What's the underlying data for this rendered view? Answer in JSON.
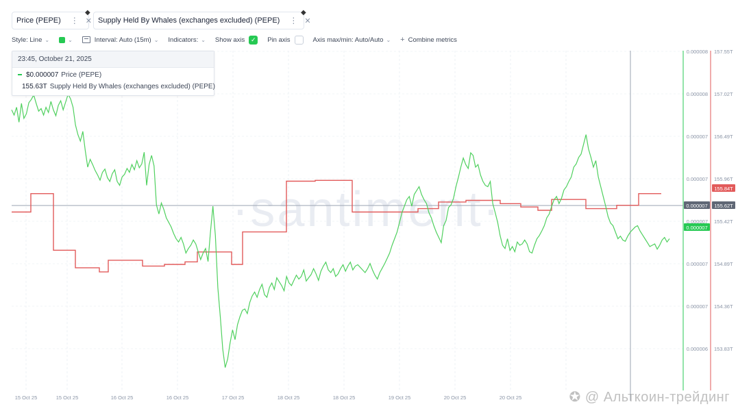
{
  "metrics": [
    {
      "label": "Price (PEPE)",
      "color": "#26c953"
    },
    {
      "label": "Supply Held By Whales (exchanges excluded) (PEPE)",
      "color": "#e25a5a"
    }
  ],
  "toolbar": {
    "style_label": "Style: Line",
    "interval_label": "Interval: Auto (15m)",
    "indicators_label": "Indicators:",
    "show_axis_label": "Show axis",
    "pin_axis_label": "Pin axis",
    "axis_maxmin_label": "Axis max/min: Auto/Auto",
    "combine_label": "Combine metrics"
  },
  "tooltip": {
    "datetime": "23:45, October 21, 2025",
    "price_value": "$0.000007",
    "price_label": "Price (PEPE)",
    "supply_value": "155.63T",
    "supply_label": "Supply Held By Whales (exchanges excluded) (PEPE)"
  },
  "chart_data": {
    "type": "line",
    "watermark": "·santiment·",
    "x_tick_labels": [
      "15 Oct 25",
      "15 Oct 25",
      "16 Oct 25",
      "16 Oct 25",
      "17 Oct 25",
      "18 Oct 25",
      "18 Oct 25",
      "19 Oct 25",
      "20 Oct 25",
      "20 Oct 25"
    ],
    "price_axis_ticks": [
      "0.000008",
      "0.000008",
      "0.000007",
      "0.000007",
      "0.000007",
      "0.000007",
      "0.000007",
      "0.000006"
    ],
    "supply_axis_ticks": [
      "157.55T",
      "157.02T",
      "156.49T",
      "155.96T",
      "155.42T",
      "154.89T",
      "154.36T",
      "153.83T"
    ],
    "supply_ylim": [
      153.5,
      157.55
    ],
    "series": [
      {
        "name": "Price (PEPE)",
        "axis": "price",
        "color": "#26c953",
        "current_label": "0.000007",
        "values": [
          152,
          160,
          148,
          171,
          142,
          165,
          158,
          141,
          136,
          129,
          142,
          154,
          150,
          160,
          148,
          156,
          139,
          152,
          161,
          145,
          138,
          152,
          140,
          128,
          135,
          148,
          175,
          190,
          200,
          185,
          215,
          240,
          228,
          236,
          245,
          252,
          260,
          248,
          243,
          256,
          262,
          250,
          244,
          262,
          268,
          255,
          251,
          242,
          248,
          236,
          244,
          230,
          241,
          235,
          217,
          268,
          236,
          222,
          238,
          298,
          312,
          295,
          305,
          318,
          325,
          332,
          342,
          350,
          355,
          348,
          358,
          372,
          365,
          360,
          352,
          358,
          370,
          382,
          372,
          365,
          385,
          340,
          300,
          345,
          425,
          470,
          520,
          548,
          535,
          510,
          490,
          505,
          482,
          470,
          460,
          458,
          465,
          448,
          438,
          432,
          440,
          428,
          420,
          436,
          440,
          425,
          418,
          428,
          410,
          416,
          422,
          430,
          408,
          418,
          422,
          414,
          406,
          412,
          408,
          398,
          415,
          410,
          405,
          396,
          404,
          414,
          400,
          392,
          386,
          398,
          402,
          396,
          408,
          404,
          396,
          390,
          400,
          392,
          386,
          398,
          392,
          390,
          394,
          398,
          402,
          396,
          388,
          398,
          406,
          412,
          402,
          395,
          388,
          380,
          372,
          360,
          350,
          340,
          325,
          310,
          300,
          290,
          285,
          300,
          282,
          276,
          270,
          282,
          290,
          296,
          310,
          318,
          330,
          340,
          348,
          356,
          330,
          322,
          302,
          298,
          288,
          270,
          256,
          240,
          226,
          236,
          242,
          218,
          222,
          240,
          236,
          252,
          262,
          268,
          270,
          262,
          296,
          310,
          325,
          345,
          360,
          365,
          350,
          368,
          362,
          370,
          355,
          360,
          358,
          352,
          358,
          370,
          372,
          360,
          350,
          345,
          338,
          330,
          318,
          312,
          300,
          290,
          285,
          296,
          288,
          275,
          270,
          262,
          255,
          240,
          235,
          225,
          220,
          205,
          190,
          212,
          225,
          240,
          230,
          255,
          270,
          285,
          300,
          316,
          326,
          330,
          340,
          350,
          346,
          352,
          354,
          346,
          340,
          336,
          332,
          330,
          338,
          344,
          350,
          356,
          362,
          360,
          358,
          366,
          360,
          352,
          348,
          355,
          350
        ],
        "values_note": "Same line approximated as drawn; see path"
      },
      {
        "name": "Supply Held By Whales (exchanges excluded) (PEPE)",
        "axis": "supply",
        "color": "#e25a5a",
        "current_label": "155.84T",
        "values_note": "step line"
      }
    ],
    "crosshair_label": "0.000007",
    "crosshair_supply_label": "155.62T"
  },
  "watermark_text": "Альткоин-трейдинг"
}
